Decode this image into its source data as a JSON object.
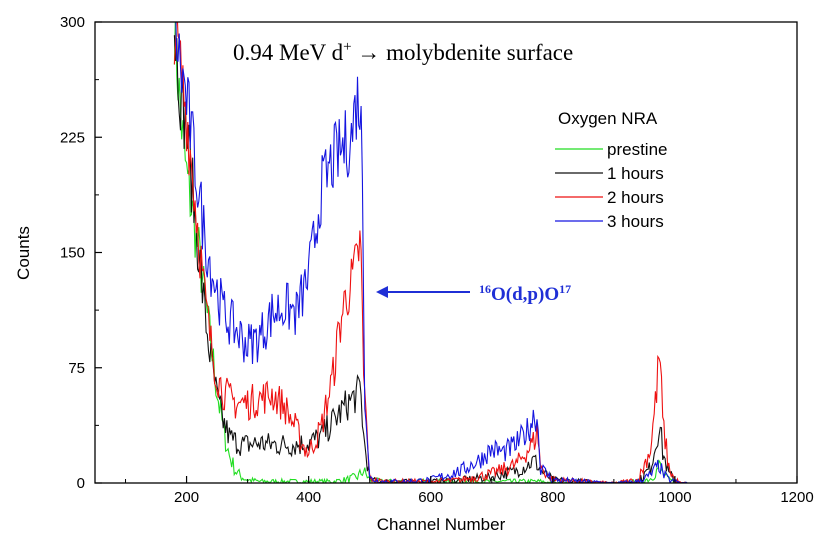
{
  "chart_data": {
    "type": "line",
    "title_main": "0.94 MeV d",
    "title_sup": "+",
    "title_rest": " → molybdenite surface",
    "xlabel": "Channel Number",
    "ylabel": "Counts",
    "xlim": [
      50,
      1200
    ],
    "ylim": [
      0,
      300
    ],
    "xticks": [
      200,
      400,
      600,
      800,
      1000,
      1200
    ],
    "yticks": [
      0,
      75,
      150,
      225,
      300
    ],
    "grid": false,
    "legend_title": "Oxygen NRA",
    "legend_position": "top-right",
    "annotation": {
      "pre_sup": "16",
      "main": "O(d,p)O",
      "post_sup": "17",
      "color": "#1f2fd6",
      "points_to": {
        "x": 488,
        "y": 125
      }
    },
    "series": [
      {
        "name": "prestine",
        "color": "#22dd22",
        "x": [
          180,
          190,
          200,
          210,
          220,
          230,
          240,
          250,
          260,
          270,
          280,
          290,
          300,
          320,
          340,
          360,
          380,
          400,
          420,
          440,
          460,
          480,
          490,
          500,
          520,
          560,
          600,
          650,
          700,
          760,
          780,
          800,
          850,
          900,
          940,
          960,
          970,
          975,
          980,
          990,
          1000,
          1010,
          1020
        ],
        "y": [
          300,
          240,
          200,
          175,
          150,
          120,
          90,
          60,
          35,
          18,
          8,
          4,
          2,
          1,
          1,
          1,
          1,
          1,
          1,
          1,
          2,
          4,
          8,
          2,
          1,
          1,
          1,
          1,
          1,
          1,
          1,
          0,
          0,
          0,
          1,
          3,
          8,
          12,
          6,
          2,
          1,
          0,
          0
        ]
      },
      {
        "name": "1 hours",
        "color": "#111111",
        "x": [
          180,
          190,
          200,
          210,
          220,
          230,
          240,
          250,
          260,
          270,
          280,
          290,
          300,
          320,
          340,
          360,
          380,
          400,
          420,
          440,
          460,
          480,
          485,
          490,
          500,
          520,
          560,
          600,
          650,
          700,
          740,
          760,
          770,
          780,
          800,
          850,
          900,
          940,
          960,
          970,
          975,
          980,
          990,
          1000,
          1010,
          1020
        ],
        "y": [
          300,
          255,
          230,
          190,
          150,
          110,
          80,
          55,
          40,
          30,
          27,
          25,
          25,
          26,
          25,
          25,
          25,
          26,
          30,
          40,
          50,
          58,
          62,
          30,
          2,
          1,
          1,
          1,
          2,
          4,
          8,
          12,
          15,
          8,
          2,
          1,
          0,
          1,
          10,
          28,
          40,
          20,
          6,
          2,
          0,
          0
        ]
      },
      {
        "name": "2 hours",
        "color": "#ee1111",
        "x": [
          180,
          190,
          200,
          210,
          220,
          230,
          240,
          250,
          260,
          270,
          280,
          300,
          320,
          340,
          360,
          380,
          390,
          400,
          420,
          440,
          450,
          460,
          470,
          480,
          485,
          490,
          500,
          520,
          560,
          600,
          650,
          700,
          740,
          760,
          770,
          775,
          780,
          800,
          850,
          900,
          940,
          960,
          970,
          975,
          980,
          990,
          1000,
          1010,
          1020
        ],
        "y": [
          300,
          270,
          240,
          200,
          160,
          120,
          90,
          70,
          60,
          55,
          52,
          52,
          55,
          58,
          50,
          35,
          25,
          20,
          35,
          70,
          100,
          120,
          130,
          145,
          160,
          70,
          3,
          1,
          1,
          1,
          2,
          6,
          12,
          22,
          28,
          35,
          10,
          2,
          1,
          0,
          2,
          22,
          60,
          88,
          40,
          10,
          2,
          0,
          0
        ]
      },
      {
        "name": "3 hours",
        "color": "#1515e0",
        "x": [
          180,
          190,
          200,
          210,
          220,
          230,
          240,
          250,
          260,
          270,
          280,
          290,
          300,
          320,
          340,
          360,
          380,
          400,
          410,
          420,
          440,
          450,
          460,
          470,
          475,
          480,
          485,
          488,
          492,
          500,
          520,
          560,
          600,
          650,
          680,
          700,
          720,
          740,
          760,
          770,
          775,
          780,
          800,
          850,
          900,
          940,
          960,
          970,
          975,
          980,
          990,
          1000,
          1010,
          1020
        ],
        "y": [
          300,
          270,
          250,
          220,
          190,
          160,
          140,
          125,
          112,
          105,
          100,
          95,
          90,
          95,
          110,
          115,
          110,
          135,
          160,
          190,
          210,
          215,
          220,
          225,
          240,
          250,
          245,
          200,
          60,
          3,
          1,
          1,
          2,
          8,
          15,
          22,
          20,
          25,
          35,
          45,
          40,
          10,
          2,
          1,
          0,
          1,
          5,
          10,
          12,
          6,
          2,
          1,
          0,
          0
        ]
      }
    ]
  }
}
